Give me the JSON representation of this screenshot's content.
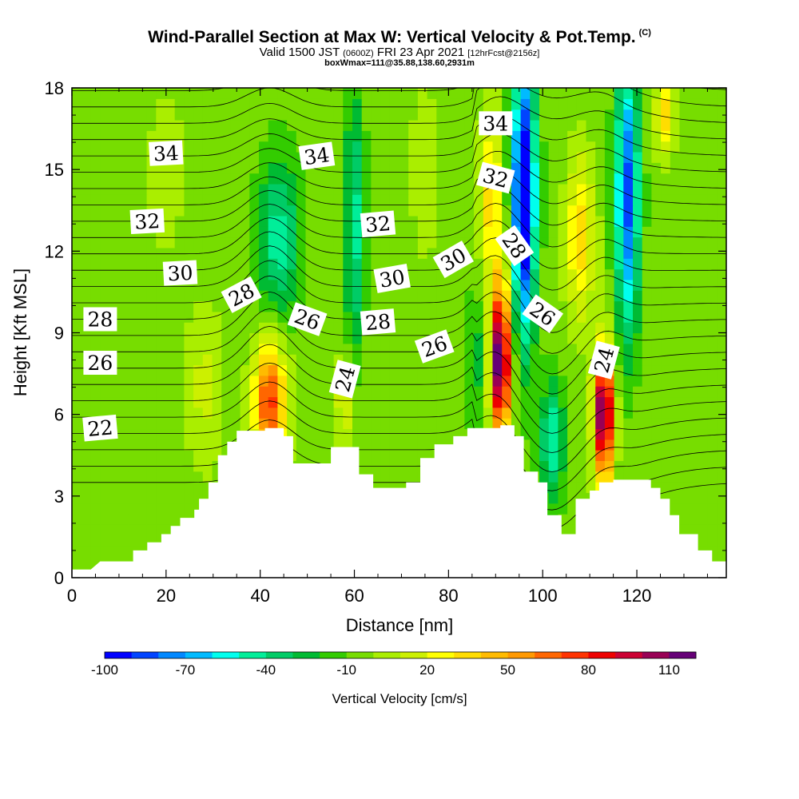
{
  "title": {
    "main": "Wind-Parallel Section at Max W: Vertical Velocity & Pot.Temp.",
    "copyright": "(C)",
    "valid_prefix": "Valid 1500 JST",
    "valid_utc": "(0600Z)",
    "valid_date": "FRI 23 Apr 2021",
    "forecast": "[12hrFcst@2156z]",
    "box": "boxWmax=111@35.88,138.60,2931m"
  },
  "chart_data": {
    "type": "heatmap",
    "xlabel": "Distance [nm]",
    "ylabel": "Height [Kft MSL]",
    "xlim": [
      0,
      139
    ],
    "ylim": [
      0,
      18
    ],
    "x_ticks": [
      0,
      20,
      40,
      60,
      80,
      100,
      120
    ],
    "y_ticks": [
      0,
      3,
      6,
      9,
      12,
      15,
      18
    ],
    "colorbar": {
      "title": "Vertical Velocity [cm/s]",
      "ticks": [
        -100,
        -70,
        -40,
        -10,
        20,
        50,
        80,
        110
      ],
      "range": [
        -100,
        120
      ],
      "colors": [
        "#0000ff",
        "#0044ff",
        "#0088ff",
        "#00bbff",
        "#00ffee",
        "#00ee99",
        "#00cc66",
        "#00bb33",
        "#33cc00",
        "#77dd00",
        "#aaee00",
        "#ccf000",
        "#ffff00",
        "#ffdd00",
        "#ffbb00",
        "#ff9900",
        "#ff6600",
        "#ff3300",
        "#ee0000",
        "#cc0033",
        "#990055",
        "#660077"
      ]
    },
    "terrain_kft": [
      [
        0,
        0.3
      ],
      [
        2,
        0.3
      ],
      [
        4,
        0.3
      ],
      [
        6,
        0.6
      ],
      [
        10,
        0.6
      ],
      [
        13,
        0.6
      ],
      [
        13,
        1
      ],
      [
        16,
        1
      ],
      [
        16,
        1.3
      ],
      [
        19,
        1.3
      ],
      [
        19,
        1.6
      ],
      [
        21,
        1.6
      ],
      [
        21,
        1.9
      ],
      [
        23,
        1.9
      ],
      [
        23,
        2.2
      ],
      [
        26,
        2.2
      ],
      [
        26,
        2.5
      ],
      [
        27,
        2.5
      ],
      [
        27,
        2.9
      ],
      [
        29,
        2.9
      ],
      [
        29,
        3.5
      ],
      [
        31,
        3.5
      ],
      [
        31,
        4.5
      ],
      [
        33,
        4.5
      ],
      [
        33,
        5
      ],
      [
        35,
        5
      ],
      [
        35,
        5.4
      ],
      [
        41,
        5.4
      ],
      [
        41,
        5.5
      ],
      [
        45,
        5.5
      ],
      [
        45,
        5.2
      ],
      [
        47,
        5.2
      ],
      [
        47,
        4.2
      ],
      [
        51,
        4.2
      ],
      [
        51,
        4.2
      ],
      [
        55,
        4.2
      ],
      [
        55,
        4.8
      ],
      [
        61,
        4.8
      ],
      [
        61,
        3.8
      ],
      [
        64,
        3.8
      ],
      [
        64,
        3.3
      ],
      [
        71,
        3.3
      ],
      [
        71,
        3.5
      ],
      [
        74,
        3.5
      ],
      [
        74,
        4.4
      ],
      [
        77,
        4.4
      ],
      [
        77,
        4.9
      ],
      [
        81,
        4.9
      ],
      [
        81,
        5.2
      ],
      [
        84,
        5.2
      ],
      [
        84,
        5.5
      ],
      [
        91,
        5.5
      ],
      [
        91,
        5.6
      ],
      [
        94,
        5.6
      ],
      [
        94,
        5.2
      ],
      [
        96,
        5.2
      ],
      [
        96,
        3.9
      ],
      [
        99,
        3.9
      ],
      [
        99,
        3.5
      ],
      [
        101,
        3.5
      ],
      [
        101,
        2.3
      ],
      [
        104,
        2.3
      ],
      [
        104,
        1.6
      ],
      [
        107,
        1.6
      ],
      [
        107,
        2.9
      ],
      [
        110,
        2.9
      ],
      [
        110,
        3.2
      ],
      [
        112,
        3.2
      ],
      [
        112,
        3.5
      ],
      [
        115,
        3.5
      ],
      [
        115,
        3.6
      ],
      [
        123,
        3.6
      ],
      [
        123,
        3.3
      ],
      [
        125,
        3.3
      ],
      [
        125,
        2.9
      ],
      [
        127,
        2.9
      ],
      [
        127,
        2.3
      ],
      [
        129,
        2.3
      ],
      [
        129,
        1.6
      ],
      [
        133,
        1.6
      ],
      [
        133,
        1
      ],
      [
        136,
        1
      ],
      [
        136,
        0.6
      ],
      [
        139,
        0.6
      ]
    ],
    "isentrope_labels": [
      {
        "text": "34",
        "x": 20,
        "y": 15.6,
        "rot": -3
      },
      {
        "text": "32",
        "x": 16,
        "y": 13.1,
        "rot": -3
      },
      {
        "text": "30",
        "x": 23,
        "y": 11.2,
        "rot": -3
      },
      {
        "text": "28",
        "x": 6,
        "y": 9.5,
        "rot": 0
      },
      {
        "text": "26",
        "x": 6,
        "y": 7.9,
        "rot": 0
      },
      {
        "text": "22",
        "x": 6,
        "y": 5.5,
        "rot": -5
      },
      {
        "text": "28",
        "x": 36,
        "y": 10.4,
        "rot": -28
      },
      {
        "text": "26",
        "x": 50,
        "y": 9.5,
        "rot": 20
      },
      {
        "text": "34",
        "x": 52,
        "y": 15.5,
        "rot": -8
      },
      {
        "text": "32",
        "x": 65,
        "y": 13,
        "rot": -5
      },
      {
        "text": "30",
        "x": 68,
        "y": 11,
        "rot": -10
      },
      {
        "text": "28",
        "x": 65,
        "y": 9.4,
        "rot": -5
      },
      {
        "text": "24",
        "x": 58,
        "y": 7.3,
        "rot": -75
      },
      {
        "text": "26",
        "x": 77,
        "y": 8.5,
        "rot": -20
      },
      {
        "text": "30",
        "x": 81,
        "y": 11.7,
        "rot": -30
      },
      {
        "text": "34",
        "x": 90,
        "y": 16.7,
        "rot": 0
      },
      {
        "text": "32",
        "x": 90,
        "y": 14.7,
        "rot": 15
      },
      {
        "text": "28",
        "x": 94,
        "y": 12.2,
        "rot": 55
      },
      {
        "text": "26",
        "x": 100,
        "y": 9.7,
        "rot": 35
      },
      {
        "text": "24",
        "x": 113,
        "y": 8,
        "rot": -75
      }
    ]
  }
}
